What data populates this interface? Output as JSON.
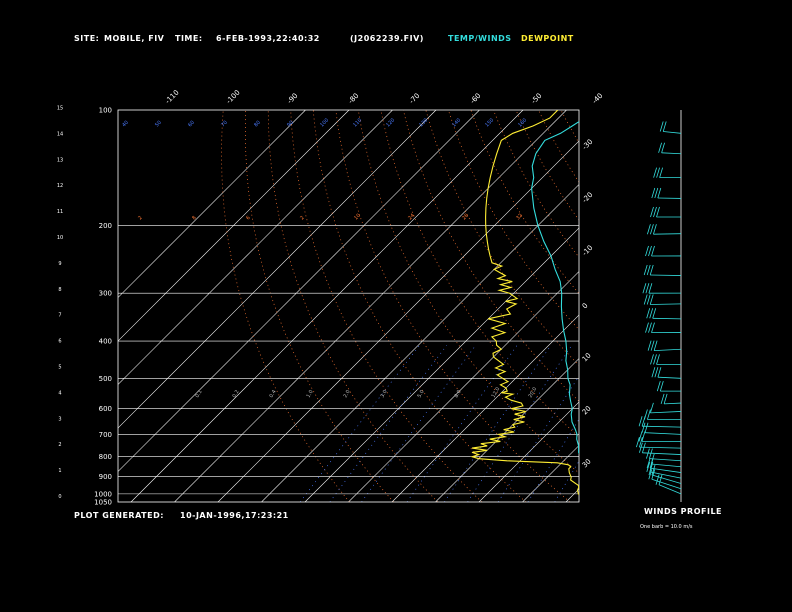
{
  "header": {
    "site_label": "SITE:",
    "site_value": "MOBILE, FIV",
    "time_label": "TIME:",
    "time_value": "6-FEB-1993,22:40:32",
    "file_name": "(J2062239.FIV)",
    "legend_temp": "TEMP/WINDS",
    "legend_dew": "DEWPOINT"
  },
  "footer": {
    "generated_label": "PLOT GENERATED:",
    "generated_value": "10-JAN-1996,17:23:21",
    "winds_title": "WINDS PROFILE",
    "barb_note": "One barb = 10.0 m/s"
  },
  "colors": {
    "temp": "#33dddd",
    "dew": "#ffee33",
    "isotherm": "#ffffff",
    "mixing": "#4a7aff",
    "dry_adiabat": "#ff7733",
    "moist_adiabat": "#4a7aff"
  },
  "chart_data": {
    "type": "line",
    "title": "",
    "pressure_ticks": [
      "100",
      "200",
      "300",
      "400",
      "500",
      "600",
      "700",
      "800",
      "900",
      "1000",
      "1050"
    ],
    "height_ticks": [
      "0",
      "1",
      "2",
      "3",
      "4",
      "5",
      "6",
      "7",
      "8",
      "9",
      "10",
      "11",
      "12",
      "13",
      "14",
      "15"
    ],
    "temp_top_ticks": [
      "-110",
      "-100",
      "-90",
      "-80",
      "-70",
      "-60",
      "-50",
      "-40"
    ],
    "temp_right_ticks": [
      "-30",
      "-20",
      "-10",
      "0",
      "10",
      "20",
      "30"
    ],
    "theta_labels": [
      "40",
      "50",
      "60",
      "70",
      "80",
      "90",
      "100",
      "110",
      "120",
      "130",
      "140",
      "150",
      "160"
    ],
    "mixing_labels": [
      "2",
      "8",
      "6",
      "2",
      "10",
      "24",
      "28",
      "32"
    ],
    "moist_labels": [
      "0.1",
      "0.2",
      "0.4",
      "1.0",
      "2.0",
      "3.0",
      "5.0",
      "8.0",
      "12.0",
      "20.0"
    ],
    "series": [
      {
        "name": "TEMP/WINDS",
        "points": [
          [
            1015,
            26
          ],
          [
            1000,
            25
          ],
          [
            980,
            23
          ],
          [
            950,
            21
          ],
          [
            920,
            19
          ],
          [
            900,
            18
          ],
          [
            880,
            17
          ],
          [
            850,
            16
          ],
          [
            820,
            14
          ],
          [
            800,
            13
          ],
          [
            780,
            11.5
          ],
          [
            750,
            10
          ],
          [
            720,
            8
          ],
          [
            700,
            7
          ],
          [
            680,
            5.5
          ],
          [
            650,
            3
          ],
          [
            620,
            1
          ],
          [
            600,
            0
          ],
          [
            575,
            -2
          ],
          [
            550,
            -4
          ],
          [
            520,
            -6
          ],
          [
            500,
            -8
          ],
          [
            475,
            -10
          ],
          [
            450,
            -12.5
          ],
          [
            425,
            -14.5
          ],
          [
            400,
            -17
          ],
          [
            375,
            -20
          ],
          [
            350,
            -23
          ],
          [
            325,
            -26
          ],
          [
            300,
            -29
          ],
          [
            280,
            -32
          ],
          [
            260,
            -36
          ],
          [
            240,
            -40
          ],
          [
            220,
            -45
          ],
          [
            200,
            -50
          ],
          [
            180,
            -55
          ],
          [
            160,
            -60
          ],
          [
            150,
            -62
          ],
          [
            140,
            -65
          ],
          [
            130,
            -67
          ],
          [
            120,
            -68
          ],
          [
            115,
            -66
          ],
          [
            110,
            -65
          ],
          [
            105,
            -64
          ],
          [
            100,
            -63
          ]
        ]
      },
      {
        "name": "DEWPOINT",
        "points": [
          [
            1015,
            22
          ],
          [
            1000,
            21
          ],
          [
            980,
            20
          ],
          [
            960,
            19.5
          ],
          [
            950,
            19
          ],
          [
            940,
            18
          ],
          [
            920,
            16
          ],
          [
            905,
            15.5
          ],
          [
            880,
            14
          ],
          [
            860,
            13
          ],
          [
            850,
            13
          ],
          [
            840,
            12
          ],
          [
            830,
            9
          ],
          [
            820,
            -3
          ],
          [
            810,
            -10
          ],
          [
            800,
            -12
          ],
          [
            790,
            -11
          ],
          [
            780,
            -13
          ],
          [
            770,
            -10
          ],
          [
            760,
            -14
          ],
          [
            750,
            -11
          ],
          [
            740,
            -13
          ],
          [
            730,
            -9
          ],
          [
            720,
            -12
          ],
          [
            710,
            -9
          ],
          [
            700,
            -11
          ],
          [
            690,
            -8
          ],
          [
            680,
            -11
          ],
          [
            670,
            -9
          ],
          [
            660,
            -10
          ],
          [
            650,
            -8
          ],
          [
            640,
            -11
          ],
          [
            630,
            -9
          ],
          [
            620,
            -12
          ],
          [
            610,
            -10
          ],
          [
            600,
            -14
          ],
          [
            590,
            -12
          ],
          [
            580,
            -13
          ],
          [
            570,
            -16
          ],
          [
            560,
            -18
          ],
          [
            550,
            -17
          ],
          [
            545,
            -20
          ],
          [
            540,
            -19
          ],
          [
            530,
            -20
          ],
          [
            520,
            -22
          ],
          [
            510,
            -21
          ],
          [
            500,
            -23
          ],
          [
            490,
            -25
          ],
          [
            480,
            -24
          ],
          [
            470,
            -27
          ],
          [
            460,
            -26
          ],
          [
            450,
            -28
          ],
          [
            440,
            -30
          ],
          [
            430,
            -31
          ],
          [
            420,
            -30
          ],
          [
            410,
            -32
          ],
          [
            400,
            -33
          ],
          [
            390,
            -35
          ],
          [
            380,
            -33
          ],
          [
            370,
            -37
          ],
          [
            360,
            -35
          ],
          [
            350,
            -40
          ],
          [
            340,
            -36
          ],
          [
            330,
            -38
          ],
          [
            320,
            -37
          ],
          [
            315,
            -40
          ],
          [
            310,
            -38
          ],
          [
            300,
            -41
          ],
          [
            295,
            -44
          ],
          [
            290,
            -42
          ],
          [
            285,
            -45
          ],
          [
            280,
            -43
          ],
          [
            275,
            -47
          ],
          [
            270,
            -46
          ],
          [
            265,
            -48
          ],
          [
            260,
            -50
          ],
          [
            255,
            -49
          ],
          [
            250,
            -52
          ],
          [
            240,
            -54
          ],
          [
            230,
            -56
          ],
          [
            220,
            -58
          ],
          [
            210,
            -60
          ],
          [
            200,
            -62
          ],
          [
            190,
            -64
          ],
          [
            180,
            -66
          ],
          [
            170,
            -68
          ],
          [
            160,
            -70
          ],
          [
            150,
            -72
          ],
          [
            140,
            -74
          ],
          [
            130,
            -76
          ],
          [
            120,
            -78
          ],
          [
            115,
            -77
          ],
          [
            110,
            -74
          ],
          [
            105,
            -72
          ],
          [
            100,
            -72
          ]
        ]
      }
    ],
    "winds": [
      {
        "p": 1000,
        "speed": 18,
        "dir": 200
      },
      {
        "p": 970,
        "speed": 22,
        "dir": 210
      },
      {
        "p": 940,
        "speed": 20,
        "dir": 215
      },
      {
        "p": 910,
        "speed": 18,
        "dir": 230
      },
      {
        "p": 880,
        "speed": 16,
        "dir": 240
      },
      {
        "p": 850,
        "speed": 14,
        "dir": 250
      },
      {
        "p": 820,
        "speed": 15,
        "dir": 255
      },
      {
        "p": 790,
        "speed": 20,
        "dir": 260
      },
      {
        "p": 760,
        "speed": 22,
        "dir": 265
      },
      {
        "p": 730,
        "speed": 20,
        "dir": 270
      },
      {
        "p": 700,
        "speed": 18,
        "dir": 260
      },
      {
        "p": 670,
        "speed": 20,
        "dir": 265
      },
      {
        "p": 640,
        "speed": 16,
        "dir": 270
      },
      {
        "p": 610,
        "speed": 14,
        "dir": 280
      },
      {
        "p": 580,
        "speed": 18,
        "dir": 275
      },
      {
        "p": 540,
        "speed": 24,
        "dir": 270
      },
      {
        "p": 500,
        "speed": 28,
        "dir": 265
      },
      {
        "p": 460,
        "speed": 30,
        "dir": 270
      },
      {
        "p": 420,
        "speed": 34,
        "dir": 275
      },
      {
        "p": 380,
        "speed": 38,
        "dir": 270
      },
      {
        "p": 350,
        "speed": 36,
        "dir": 268
      },
      {
        "p": 320,
        "speed": 40,
        "dir": 272
      },
      {
        "p": 300,
        "speed": 42,
        "dir": 270
      },
      {
        "p": 270,
        "speed": 40,
        "dir": 268
      },
      {
        "p": 240,
        "speed": 38,
        "dir": 270
      },
      {
        "p": 210,
        "speed": 35,
        "dir": 272
      },
      {
        "p": 190,
        "speed": 30,
        "dir": 270
      },
      {
        "p": 170,
        "speed": 28,
        "dir": 268
      },
      {
        "p": 150,
        "speed": 25,
        "dir": 270
      },
      {
        "p": 130,
        "speed": 22,
        "dir": 265
      },
      {
        "p": 115,
        "speed": 20,
        "dir": 260
      }
    ]
  }
}
